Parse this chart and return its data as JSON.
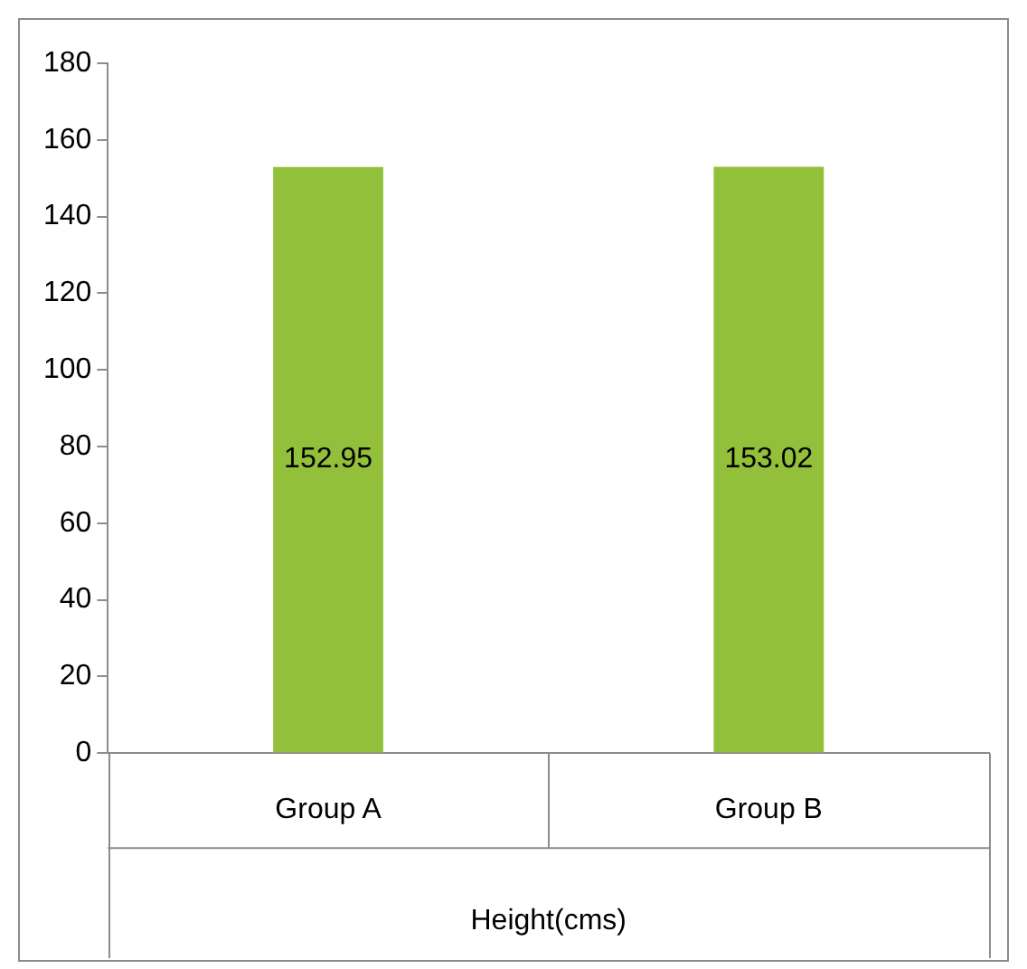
{
  "chart_data": {
    "type": "bar",
    "xlabel": "Height(cms)",
    "categories": [
      "Group A",
      "Group B"
    ],
    "values": [
      152.95,
      153.02
    ],
    "color": "#92c03a",
    "ylim": [
      0,
      180
    ],
    "yticks": [
      0,
      20,
      40,
      60,
      80,
      100,
      120,
      140,
      160,
      180
    ],
    "grid": false,
    "legend": false,
    "data_labels": true
  }
}
